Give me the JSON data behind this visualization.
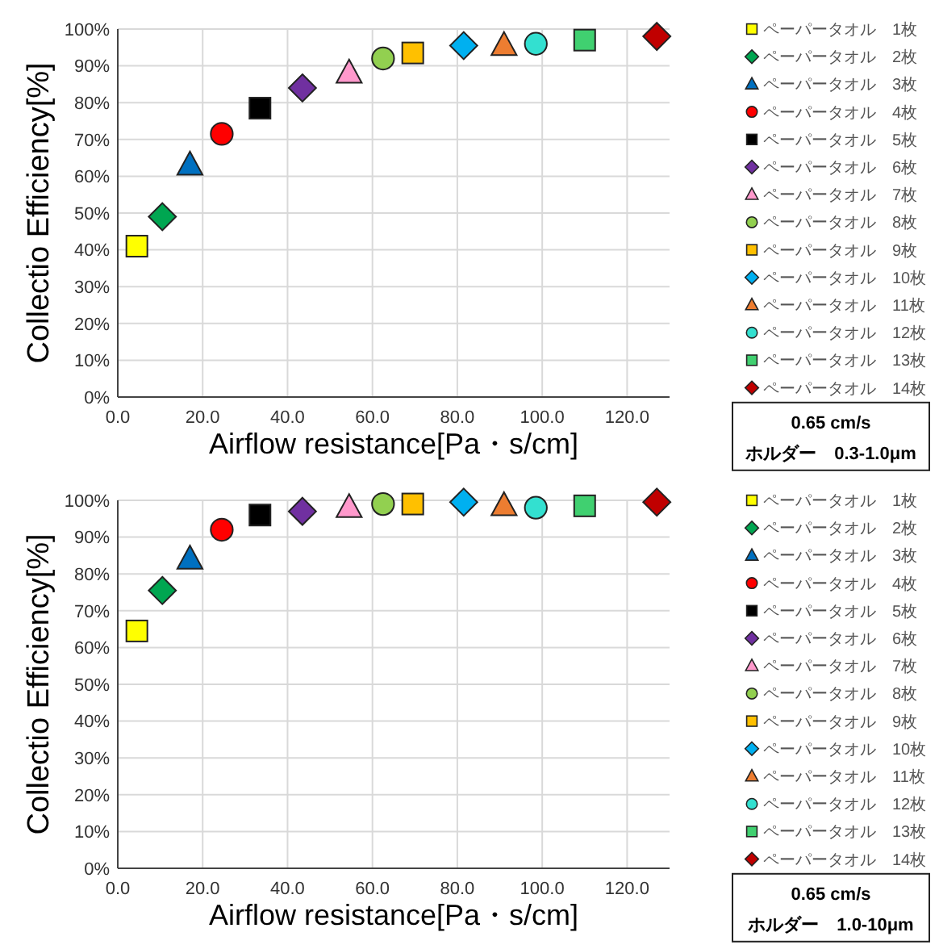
{
  "chart_data": [
    {
      "type": "scatter",
      "xlabel": "Airflow resistance[Pa・s/cm]",
      "ylabel": "Collectio Efficiency[%]",
      "xlim": [
        0,
        130
      ],
      "xticks": [
        {
          "value": 0,
          "label": "0.0"
        },
        {
          "value": 20,
          "label": "20.0"
        },
        {
          "value": 40,
          "label": "40.0"
        },
        {
          "value": 60,
          "label": "60.0"
        },
        {
          "value": 80,
          "label": "80.0"
        },
        {
          "value": 100,
          "label": "100.0"
        },
        {
          "value": 120,
          "label": "120.0"
        }
      ],
      "ylim": [
        0,
        100
      ],
      "yticks": [
        {
          "value": 0,
          "label": "0%"
        },
        {
          "value": 10,
          "label": "10%"
        },
        {
          "value": 20,
          "label": "20%"
        },
        {
          "value": 30,
          "label": "30%"
        },
        {
          "value": 40,
          "label": "40%"
        },
        {
          "value": 50,
          "label": "50%"
        },
        {
          "value": 60,
          "label": "60%"
        },
        {
          "value": 70,
          "label": "70%"
        },
        {
          "value": 80,
          "label": "80%"
        },
        {
          "value": 90,
          "label": "90%"
        },
        {
          "value": 100,
          "label": "100%"
        }
      ],
      "grid": true,
      "legend": "right",
      "annotations": [
        "0.65 cm/s",
        "ホルダー　0.3-1.0μm"
      ],
      "series": [
        {
          "name": "ペーパータオル　1枚",
          "color": "#ffff00",
          "marker": "square",
          "x": [
            4.5
          ],
          "values": [
            41
          ]
        },
        {
          "name": "ペーパータオル　2枚",
          "color": "#00a651",
          "marker": "diamond",
          "x": [
            10.5
          ],
          "values": [
            49
          ]
        },
        {
          "name": "ペーパータオル　3枚",
          "color": "#0070c0",
          "marker": "triangle",
          "x": [
            17
          ],
          "values": [
            63
          ]
        },
        {
          "name": "ペーパータオル　4枚",
          "color": "#ff0000",
          "marker": "circle",
          "x": [
            24.5
          ],
          "values": [
            71.5
          ]
        },
        {
          "name": "ペーパータオル　5枚",
          "color": "#000000",
          "marker": "square",
          "x": [
            33.5
          ],
          "values": [
            78.5
          ]
        },
        {
          "name": "ペーパータオル　6枚",
          "color": "#7030a0",
          "marker": "diamond",
          "x": [
            43.5
          ],
          "values": [
            84
          ]
        },
        {
          "name": "ペーパータオル　7枚",
          "color": "#ff99cc",
          "marker": "triangle",
          "x": [
            54.5
          ],
          "values": [
            88
          ]
        },
        {
          "name": "ペーパータオル　8枚",
          "color": "#92d050",
          "marker": "circle",
          "x": [
            62.5
          ],
          "values": [
            92
          ]
        },
        {
          "name": "ペーパータオル　9枚",
          "color": "#ffc000",
          "marker": "square",
          "x": [
            69.5
          ],
          "values": [
            93.5
          ]
        },
        {
          "name": "ペーパータオル　10枚",
          "color": "#00b0f0",
          "marker": "diamond",
          "x": [
            81.5
          ],
          "values": [
            95.5
          ]
        },
        {
          "name": "ペーパータオル　11枚",
          "color": "#ed7d31",
          "marker": "triangle",
          "x": [
            91
          ],
          "values": [
            95.5
          ]
        },
        {
          "name": "ペーパータオル　12枚",
          "color": "#33e0d0",
          "marker": "circle",
          "x": [
            98.5
          ],
          "values": [
            96
          ]
        },
        {
          "name": "ペーパータオル　13枚",
          "color": "#40d070",
          "marker": "square",
          "x": [
            110
          ],
          "values": [
            97
          ]
        },
        {
          "name": "ペーパータオル　14枚",
          "color": "#c00000",
          "marker": "diamond",
          "x": [
            127
          ],
          "values": [
            98
          ]
        }
      ]
    },
    {
      "type": "scatter",
      "xlabel": "Airflow resistance[Pa・s/cm]",
      "ylabel": "Collectio Efficiency[%]",
      "xlim": [
        0,
        130
      ],
      "xticks": [
        {
          "value": 0,
          "label": "0.0"
        },
        {
          "value": 20,
          "label": "20.0"
        },
        {
          "value": 40,
          "label": "40.0"
        },
        {
          "value": 60,
          "label": "60.0"
        },
        {
          "value": 80,
          "label": "80.0"
        },
        {
          "value": 100,
          "label": "100.0"
        },
        {
          "value": 120,
          "label": "120.0"
        }
      ],
      "ylim": [
        0,
        100
      ],
      "yticks": [
        {
          "value": 0,
          "label": "0%"
        },
        {
          "value": 10,
          "label": "10%"
        },
        {
          "value": 20,
          "label": "20%"
        },
        {
          "value": 30,
          "label": "30%"
        },
        {
          "value": 40,
          "label": "40%"
        },
        {
          "value": 50,
          "label": "50%"
        },
        {
          "value": 60,
          "label": "60%"
        },
        {
          "value": 70,
          "label": "70%"
        },
        {
          "value": 80,
          "label": "80%"
        },
        {
          "value": 90,
          "label": "90%"
        },
        {
          "value": 100,
          "label": "100%"
        }
      ],
      "grid": true,
      "legend": "right",
      "annotations": [
        "0.65 cm/s",
        "ホルダー　1.0-10μm"
      ],
      "series": [
        {
          "name": "ペーパータオル　1枚",
          "color": "#ffff00",
          "marker": "square",
          "x": [
            4.5
          ],
          "values": [
            64.5
          ]
        },
        {
          "name": "ペーパータオル　2枚",
          "color": "#00a651",
          "marker": "diamond",
          "x": [
            10.5
          ],
          "values": [
            75.5
          ]
        },
        {
          "name": "ペーパータオル　3枚",
          "color": "#0070c0",
          "marker": "triangle",
          "x": [
            17
          ],
          "values": [
            84
          ]
        },
        {
          "name": "ペーパータオル　4枚",
          "color": "#ff0000",
          "marker": "circle",
          "x": [
            24.5
          ],
          "values": [
            92
          ]
        },
        {
          "name": "ペーパータオル　5枚",
          "color": "#000000",
          "marker": "square",
          "x": [
            33.5
          ],
          "values": [
            96
          ]
        },
        {
          "name": "ペーパータオル　6枚",
          "color": "#7030a0",
          "marker": "diamond",
          "x": [
            43.5
          ],
          "values": [
            97
          ]
        },
        {
          "name": "ペーパータオル　7枚",
          "color": "#ff99cc",
          "marker": "triangle",
          "x": [
            54.5
          ],
          "values": [
            98
          ]
        },
        {
          "name": "ペーパータオル　8枚",
          "color": "#92d050",
          "marker": "circle",
          "x": [
            62.5
          ],
          "values": [
            99
          ]
        },
        {
          "name": "ペーパータオル　9枚",
          "color": "#ffc000",
          "marker": "square",
          "x": [
            69.5
          ],
          "values": [
            99
          ]
        },
        {
          "name": "ペーパータオル　10枚",
          "color": "#00b0f0",
          "marker": "diamond",
          "x": [
            81.5
          ],
          "values": [
            99.5
          ]
        },
        {
          "name": "ペーパータオル　11枚",
          "color": "#ed7d31",
          "marker": "triangle",
          "x": [
            91
          ],
          "values": [
            98.5
          ]
        },
        {
          "name": "ペーパータオル　12枚",
          "color": "#33e0d0",
          "marker": "circle",
          "x": [
            98.5
          ],
          "values": [
            98
          ]
        },
        {
          "name": "ペーパータオル　13枚",
          "color": "#40d070",
          "marker": "square",
          "x": [
            110
          ],
          "values": [
            98.5
          ]
        },
        {
          "name": "ペーパータオル　14枚",
          "color": "#c00000",
          "marker": "diamond",
          "x": [
            127
          ],
          "values": [
            99.5
          ]
        }
      ]
    }
  ]
}
